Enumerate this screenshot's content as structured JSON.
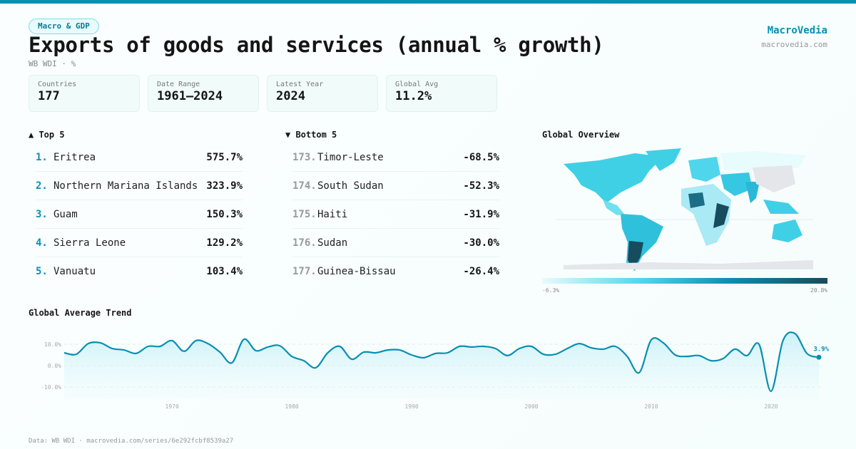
{
  "header": {
    "category": "Macro & GDP",
    "title": "Exports of goods and services (annual % growth)",
    "subtitle": "WB WDI · %",
    "brand": "MacroVedia",
    "brand_url": "macrovedia.com"
  },
  "stats": [
    {
      "label": "Countries",
      "value": "177"
    },
    {
      "label": "Date Range",
      "value": "1961–2024"
    },
    {
      "label": "Latest Year",
      "value": "2024"
    },
    {
      "label": "Global Avg",
      "value": "11.2%"
    }
  ],
  "top5": {
    "title": "▲ Top 5",
    "items": [
      {
        "rank": "1.",
        "name": "Eritrea",
        "value": "575.7%"
      },
      {
        "rank": "2.",
        "name": "Northern Mariana Islands",
        "value": "323.9%"
      },
      {
        "rank": "3.",
        "name": "Guam",
        "value": "150.3%"
      },
      {
        "rank": "4.",
        "name": "Sierra Leone",
        "value": "129.2%"
      },
      {
        "rank": "5.",
        "name": "Vanuatu",
        "value": "103.4%"
      }
    ]
  },
  "bottom5": {
    "title": "▼ Bottom 5",
    "items": [
      {
        "rank": "173.",
        "name": "Timor-Leste",
        "value": "-68.5%"
      },
      {
        "rank": "174.",
        "name": "South Sudan",
        "value": "-52.3%"
      },
      {
        "rank": "175.",
        "name": "Haiti",
        "value": "-31.9%"
      },
      {
        "rank": "176.",
        "name": "Sudan",
        "value": "-30.0%"
      },
      {
        "rank": "177.",
        "name": "Guinea-Bissau",
        "value": "-26.4%"
      }
    ]
  },
  "map": {
    "title": "Global Overview",
    "legend_min": "-6.3%",
    "legend_max": "20.8%",
    "colors": {
      "low": "#e8fbfd",
      "mid": "#4fd6ec",
      "high": "#174b5e",
      "nodata": "#e4e6ea"
    }
  },
  "chart_data": {
    "type": "area",
    "title": "Global Average Trend",
    "x": [
      1961,
      1962,
      1963,
      1964,
      1965,
      1966,
      1967,
      1968,
      1969,
      1970,
      1971,
      1972,
      1973,
      1974,
      1975,
      1976,
      1977,
      1978,
      1979,
      1980,
      1981,
      1982,
      1983,
      1984,
      1985,
      1986,
      1987,
      1988,
      1989,
      1990,
      1991,
      1992,
      1993,
      1994,
      1995,
      1996,
      1997,
      1998,
      1999,
      2000,
      2001,
      2002,
      2003,
      2004,
      2005,
      2006,
      2007,
      2008,
      2009,
      2010,
      2011,
      2012,
      2013,
      2014,
      2015,
      2016,
      2017,
      2018,
      2019,
      2020,
      2021,
      2022,
      2023,
      2024
    ],
    "values": [
      6.0,
      5.3,
      10.3,
      10.7,
      8.0,
      7.3,
      5.7,
      9.0,
      9.0,
      11.7,
      6.7,
      11.7,
      10.3,
      6.3,
      1.3,
      12.3,
      7.0,
      8.7,
      9.3,
      4.3,
      2.3,
      -1.0,
      6.0,
      9.0,
      3.0,
      6.3,
      6.0,
      7.3,
      7.3,
      5.0,
      3.7,
      5.7,
      6.0,
      9.0,
      8.7,
      9.0,
      8.0,
      4.7,
      8.0,
      9.0,
      5.3,
      5.3,
      8.0,
      10.3,
      8.3,
      7.7,
      9.0,
      4.3,
      -3.3,
      12.0,
      10.7,
      5.0,
      4.3,
      4.7,
      2.3,
      3.3,
      7.7,
      4.7,
      10.0,
      -12.0,
      11.7,
      15.0,
      5.7,
      3.9
    ],
    "yticks": [
      "10.0%",
      "0.0%",
      "-10.0%"
    ],
    "ytick_values": [
      10,
      0,
      -10
    ],
    "xticks": [
      1970,
      1980,
      1990,
      2000,
      2010,
      2020
    ],
    "ylim": [
      -15,
      17
    ],
    "xlim": [
      1961,
      2024
    ],
    "last_label": "3.9%",
    "color": "#0a8fb2",
    "grid": true
  },
  "footer": "Data: WB WDI · macrovedia.com/series/6e292fcbf8539a27"
}
